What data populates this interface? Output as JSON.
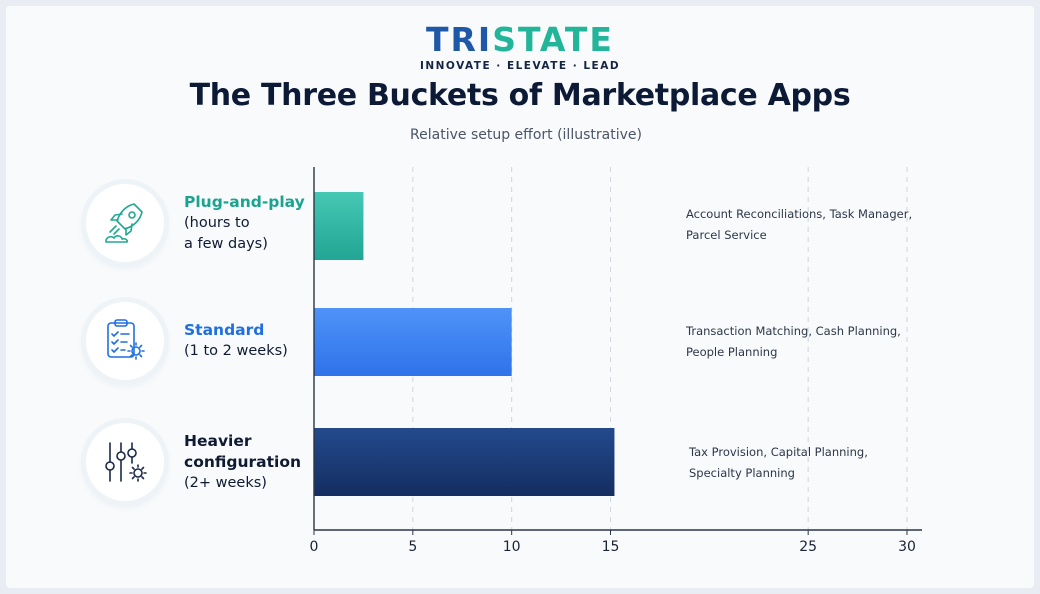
{
  "brand": {
    "name_part1": "TRI",
    "name_part2": "STATE",
    "tagline": "INNOVATE · ELEVATE · LEAD"
  },
  "title": "The Three Buckets of Marketplace Apps",
  "subtitle": "Relative setup effort (illustrative)",
  "categories": [
    {
      "name": "Plug-and-play",
      "detail_lines": [
        "(hours to",
        "a few days)"
      ],
      "icon": "rocket-icon",
      "examples_lines": [
        "Account Reconciliations, Task Manager,",
        "Parcel Service"
      ]
    },
    {
      "name": "Standard",
      "detail_lines": [
        "(1 to 2 weeks)"
      ],
      "icon": "checklist-gear-icon",
      "examples_lines": [
        "Transaction Matching, Cash Planning,",
        "People Planning"
      ]
    },
    {
      "name_lines": [
        "Heavier",
        "configuration"
      ],
      "detail_lines": [
        "(2+ weeks)"
      ],
      "icon": "sliders-gear-icon",
      "examples_lines": [
        "Tax Provision, Capital Planning,",
        "Specialty Planning"
      ]
    }
  ],
  "colors": {
    "plug": "#2fb7a6",
    "standard": "#3b82f6",
    "heavy": "#1b3a78",
    "plug_text": "#1aa38f",
    "standard_text": "#1f6fe0"
  },
  "chart_data": {
    "type": "bar",
    "orientation": "horizontal",
    "categories": [
      "Plug-and-play",
      "Standard",
      "Heavier configuration"
    ],
    "values": [
      2.5,
      10,
      15.2
    ],
    "title": "The Three Buckets of Marketplace Apps",
    "subtitle": "Relative setup effort (illustrative)",
    "xlim": [
      0,
      30
    ],
    "xticks": [
      0,
      5,
      10,
      15,
      25,
      30
    ],
    "grid": "vertical dashed"
  }
}
